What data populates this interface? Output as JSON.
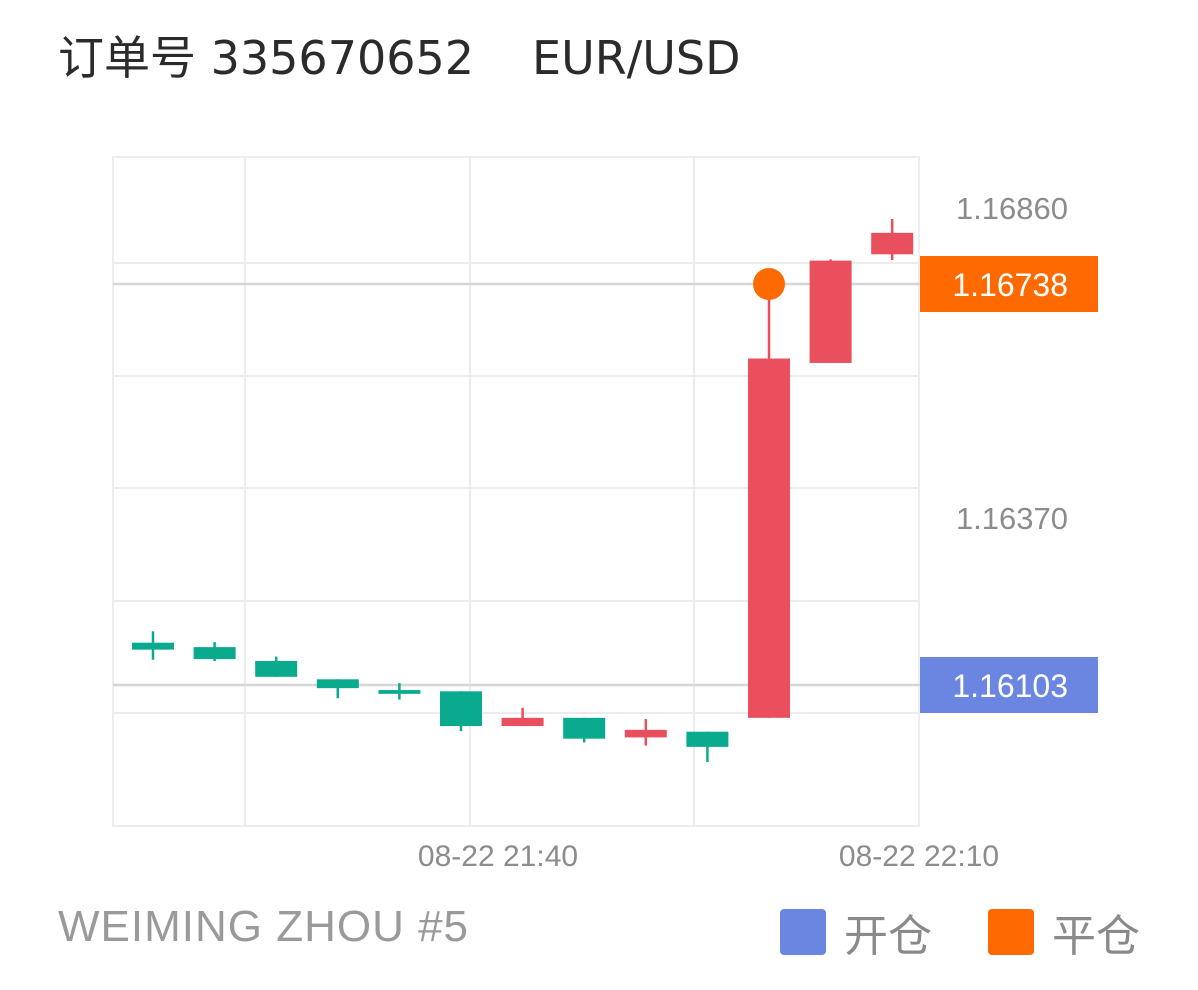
{
  "header": {
    "order_label": "订单号 335670652",
    "symbol": "EUR/USD"
  },
  "footer": {
    "account": "WEIMING ZHOU #5"
  },
  "legend": [
    {
      "label": "开仓",
      "color": "#6b86e0"
    },
    {
      "label": "平仓",
      "color": "#ff6a00"
    }
  ],
  "chart_data": {
    "type": "candlestick",
    "y_tick_labels": [
      "1.16860",
      "1.16370"
    ],
    "x_tick_labels": [
      "08-22 21:40",
      "08-22 22:10"
    ],
    "open_price": {
      "value": 1.16103,
      "label": "1.16103",
      "color": "#6b86e0"
    },
    "close_price": {
      "value": 1.16738,
      "label": "1.16738",
      "color": "#ff6a00"
    },
    "up_color": "#ea4f5e",
    "down_color": "#0aaa8f",
    "candles": [
      {
        "open": 1.1617,
        "high": 1.16188,
        "low": 1.16143,
        "close": 1.16159
      },
      {
        "open": 1.16163,
        "high": 1.16171,
        "low": 1.16141,
        "close": 1.16144
      },
      {
        "open": 1.16141,
        "high": 1.16148,
        "low": 1.16116,
        "close": 1.16116
      },
      {
        "open": 1.16112,
        "high": 1.16112,
        "low": 1.16082,
        "close": 1.16098
      },
      {
        "open": 1.16095,
        "high": 1.16106,
        "low": 1.1608,
        "close": 1.16089
      },
      {
        "open": 1.16093,
        "high": 1.16093,
        "low": 1.1603,
        "close": 1.16038
      },
      {
        "open": 1.16038,
        "high": 1.16067,
        "low": 1.16038,
        "close": 1.16051
      },
      {
        "open": 1.16051,
        "high": 1.16051,
        "low": 1.16012,
        "close": 1.16018
      },
      {
        "open": 1.1602,
        "high": 1.16049,
        "low": 1.16007,
        "close": 1.16032
      },
      {
        "open": 1.16029,
        "high": 1.16029,
        "low": 1.15981,
        "close": 1.16005
      },
      {
        "open": 1.16051,
        "high": 1.16738,
        "low": 1.16051,
        "close": 1.1662
      },
      {
        "open": 1.16613,
        "high": 1.16777,
        "low": 1.16613,
        "close": 1.16775
      },
      {
        "open": 1.16785,
        "high": 1.16841,
        "low": 1.16776,
        "close": 1.16819
      }
    ]
  }
}
